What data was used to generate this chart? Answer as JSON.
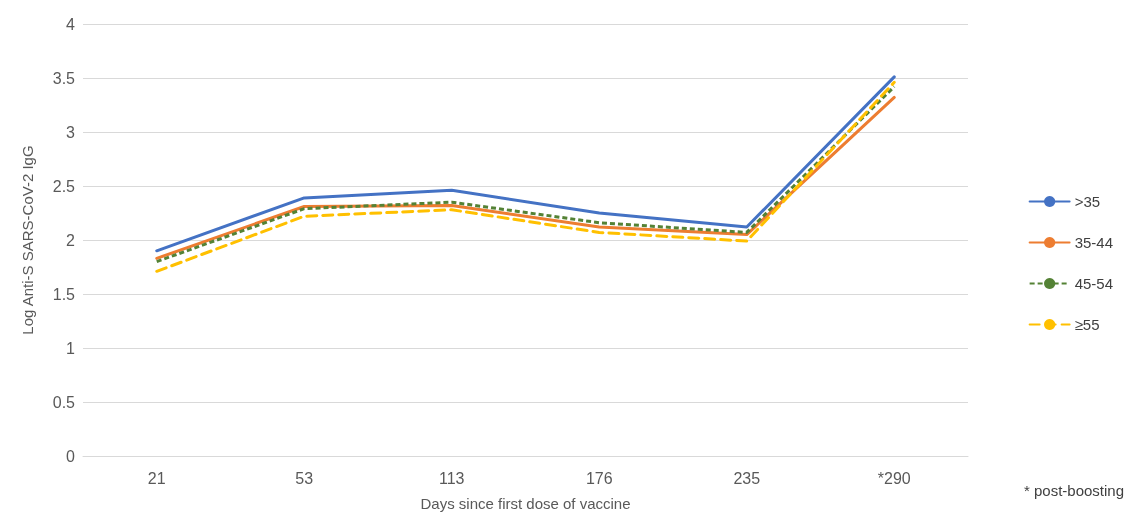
{
  "chart_data": {
    "type": "line",
    "xlabel": "Days since first dose of vaccine",
    "ylabel": "Log Anti-S SARS-CoV-2 IgG",
    "categories": [
      "21",
      "53",
      "113",
      "176",
      "235",
      "*290"
    ],
    "ylim": [
      0,
      4
    ],
    "yticks": [
      0,
      0.5,
      1,
      1.5,
      2,
      2.5,
      3,
      3.5,
      4
    ],
    "grid": "y",
    "legend": "right",
    "marker": "none",
    "annotations": [
      "* post-boosting"
    ],
    "series": [
      {
        "name": ">35",
        "color": "#4472c4",
        "line_style": "solid",
        "values": [
          1.9,
          2.39,
          2.46,
          2.25,
          2.12,
          3.51
        ]
      },
      {
        "name": "35-44",
        "color": "#ed7d31",
        "line_style": "solid",
        "values": [
          1.83,
          2.31,
          2.32,
          2.12,
          2.05,
          3.32
        ]
      },
      {
        "name": "45-54",
        "color": "#548235",
        "line_style": "dotted",
        "values": [
          1.8,
          2.29,
          2.35,
          2.16,
          2.07,
          3.42
        ]
      },
      {
        "name": "≥55",
        "color": "#ffc000",
        "line_style": "dashed",
        "values": [
          1.71,
          2.22,
          2.28,
          2.07,
          1.99,
          3.46
        ]
      }
    ]
  }
}
